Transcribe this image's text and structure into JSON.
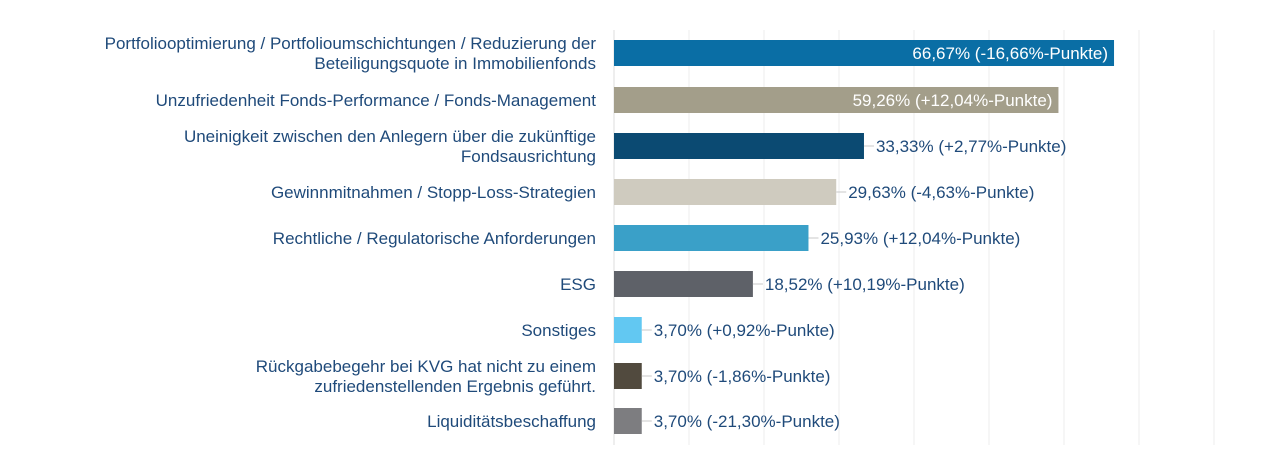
{
  "chart_data": {
    "type": "bar",
    "orientation": "horizontal",
    "xlim": [
      0,
      80
    ],
    "grid": true,
    "legend": "none",
    "categories": [
      [
        "Portfoliooptimierung / Portfolioumschichtungen / Reduzierung der",
        "Beteiligungsquote in Immobilienfonds"
      ],
      [
        "Unzufriedenheit Fonds-Performance / Fonds-Management"
      ],
      [
        "Uneinigkeit zwischen den Anlegern über die zukünftige",
        "Fondsausrichtung"
      ],
      [
        "Gewinnmitnahmen / Stopp-Loss-Strategien"
      ],
      [
        "Rechtliche / Regulatorische Anforderungen"
      ],
      [
        "ESG"
      ],
      [
        "Sonstiges"
      ],
      [
        "Rückgabebegehr bei KVG hat nicht zu einem",
        "zufriedenstellenden Ergebnis geführt."
      ],
      [
        "Liquiditätsbeschaffung"
      ]
    ],
    "values": [
      66.67,
      59.26,
      33.33,
      29.63,
      25.93,
      18.52,
      3.7,
      3.7,
      3.7
    ],
    "data_labels": [
      "66,67% (-16,66%-Punkte)",
      "59,26% (+12,04%-Punkte)",
      "33,33% (+2,77%-Punkte)",
      "29,63% (-4,63%-Punkte)",
      "25,93% (+12,04%-Punkte)",
      "18,52% (+10,19%-Punkte)",
      "3,70% (+0,92%-Punkte)",
      "3,70% (-1,86%-Punkte)",
      "3,70% (-21,30%-Punkte)"
    ],
    "label_inside": [
      true,
      true,
      false,
      false,
      false,
      false,
      false,
      false,
      false
    ],
    "colors": [
      "#0a6ea5",
      "#a39e8a",
      "#0b4a72",
      "#cfcbbf",
      "#3aa0c8",
      "#5e6168",
      "#62c8f2",
      "#514a3e",
      "#7d7d80"
    ]
  }
}
